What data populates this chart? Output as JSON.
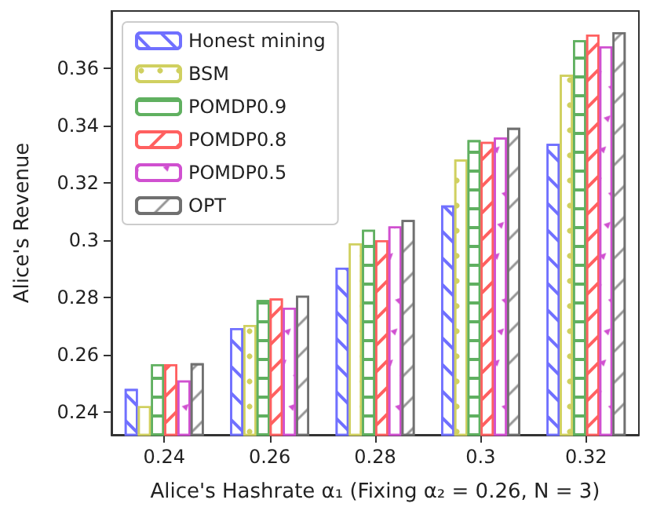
{
  "chart_data": {
    "type": "bar",
    "xlabel": "Alice's Hashrate α₁ (Fixing α₂ = 0.26, N = 3)",
    "ylabel": "Alice's Revenue",
    "categories": [
      "0.24",
      "0.26",
      "0.28",
      "0.3",
      "0.32"
    ],
    "series": [
      {
        "name": "Honest mining",
        "color": "#7070ff",
        "values": [
          0.248,
          0.2693,
          0.2904,
          0.3121,
          0.3336
        ]
      },
      {
        "name": "BSM",
        "color": "#d0d060",
        "values": [
          0.242,
          0.2704,
          0.2989,
          0.3281,
          0.3577
        ]
      },
      {
        "name": "POMDP0.9",
        "color": "#60b060",
        "values": [
          0.2567,
          0.2791,
          0.3036,
          0.3349,
          0.3698
        ]
      },
      {
        "name": "POMDP0.8",
        "color": "#ff6060",
        "values": [
          0.2567,
          0.2796,
          0.3,
          0.3343,
          0.3718
        ]
      },
      {
        "name": "POMDP0.5",
        "color": "#d050d0",
        "values": [
          0.251,
          0.2764,
          0.3048,
          0.3358,
          0.3677
        ]
      },
      {
        "name": "OPT",
        "color": "#707070",
        "values": [
          0.257,
          0.2806,
          0.307,
          0.3392,
          0.3726
        ]
      }
    ],
    "ylim": [
      0.232,
      0.38
    ],
    "yticks": [
      0.24,
      0.26,
      0.28,
      0.3,
      0.32,
      0.34,
      0.36
    ],
    "grid": false,
    "legend": "top left"
  }
}
